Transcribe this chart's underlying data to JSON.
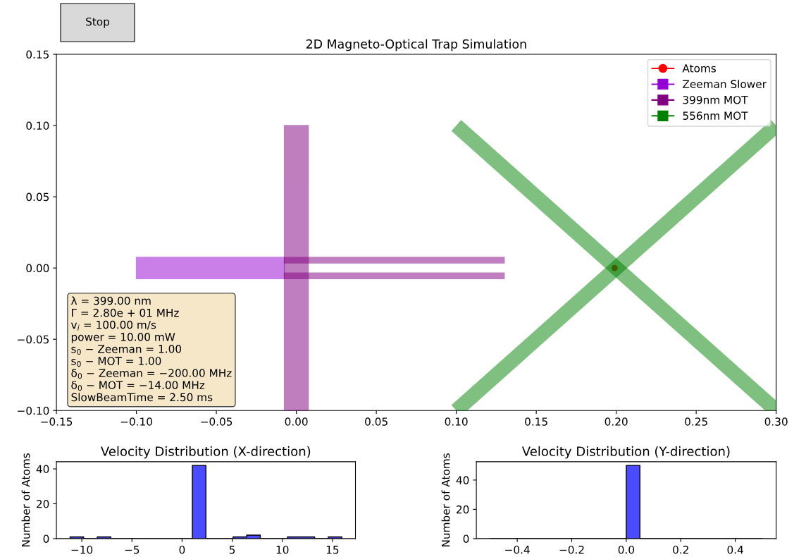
{
  "chart_data": [
    {
      "type": "line",
      "title": "2D Magneto-Optical Trap Simulation",
      "xlim": [
        -0.15,
        0.3
      ],
      "ylim": [
        -0.1,
        0.15
      ],
      "xticks": [
        {
          "value": -0.15,
          "label": "−0.15"
        },
        {
          "value": -0.1,
          "label": "−0.10"
        },
        {
          "value": -0.05,
          "label": "−0.05"
        },
        {
          "value": 0,
          "label": "0.00"
        },
        {
          "value": 0.05,
          "label": "0.05"
        },
        {
          "value": 0.1,
          "label": "0.10"
        },
        {
          "value": 0.15,
          "label": "0.15"
        },
        {
          "value": 0.2,
          "label": "0.20"
        },
        {
          "value": 0.25,
          "label": "0.25"
        },
        {
          "value": 0.3,
          "label": "0.30"
        }
      ],
      "yticks": [
        {
          "value": -0.1,
          "label": "−0.10"
        },
        {
          "value": -0.05,
          "label": "−0.05"
        },
        {
          "value": 0,
          "label": "0.00"
        },
        {
          "value": 0.05,
          "label": "0.05"
        },
        {
          "value": 0.1,
          "label": "0.10"
        },
        {
          "value": 0.15,
          "label": "0.15"
        }
      ],
      "legend": "top right",
      "grid": false,
      "series": [
        {
          "type": "scatter",
          "name": "Atoms",
          "color": "#ff0000",
          "marker": "circle",
          "x": [
            0.199
          ],
          "values": [
            0.0
          ]
        },
        {
          "type": "area",
          "name": "Zeeman Slower",
          "color": "#9400d3",
          "x": [
            -0.1,
            -0.0075,
            -0.0075,
            -0.1
          ],
          "values": [
            -0.0075,
            -0.0075,
            0.0075,
            0.0075
          ]
        },
        {
          "type": "area",
          "name": "399nm MOT",
          "color": "#800080",
          "x": [
            -0.0075,
            0.0075,
            0.0075,
            -0.0075
          ],
          "values": [
            -0.1,
            -0.1,
            0.1,
            0.1
          ]
        },
        {
          "type": "area",
          "color": "#800080",
          "x": [
            -0.0075,
            0.13,
            0.13,
            -0.0075
          ],
          "values": [
            0.0035,
            0.0035,
            0.0075,
            0.0075
          ]
        },
        {
          "type": "area",
          "color": "#800080",
          "x": [
            -0.0075,
            0.13,
            0.13,
            -0.0075
          ],
          "values": [
            -0.0075,
            -0.0075,
            -0.0035,
            -0.0035
          ]
        },
        {
          "type": "line",
          "name": "556nm MOT",
          "color": "#008000",
          "x": [
            0.1,
            0.3
          ],
          "values": [
            0.1,
            -0.1
          ]
        },
        {
          "type": "line",
          "color": "#008000",
          "x": [
            0.1,
            0.3
          ],
          "values": [
            -0.1,
            0.1
          ]
        }
      ],
      "annotations": [
        "λ = 399.00 nm\nΓ = 2.80e + 01 MHz\nv$_{i}$ = 100.00 m/s\npower = 10.00 mW\ns$_{0}$ − Zeeman = 1.00\ns$_{0}$ − MOT = 1.00\nδ$_{0}$ − Zeeman = −200.00 MHz\nδ$_{0}$ − MOT = −14.00 MHz\nSlowBeamTime = 2.50 ms",
        "Stop"
      ]
    },
    {
      "type": "histogram",
      "title": "Velocity Distribution (X-direction)",
      "ylabel": "Number of Atoms",
      "color": "#4b4bff",
      "bins": [
        -11.17,
        -9.815,
        -8.46,
        -7.105,
        -5.75,
        -4.395,
        -3.04,
        -1.685,
        -0.33,
        1.025,
        2.38,
        3.735,
        5.09,
        6.445,
        7.8,
        9.155,
        10.51,
        11.865,
        13.22,
        14.575,
        15.93
      ],
      "values": [
        1,
        0,
        1,
        0,
        0,
        0,
        0,
        0,
        0,
        42,
        0,
        0,
        1,
        2,
        0,
        0,
        1,
        1,
        0,
        1
      ],
      "xlim": [
        -12.53,
        17.29
      ],
      "ylim": [
        0,
        44.1
      ],
      "xticks": [
        {
          "value": -10,
          "label": "−10"
        },
        {
          "value": -5,
          "label": "−5"
        },
        0,
        5,
        10,
        15
      ],
      "yticks": [
        0,
        20,
        40
      ]
    },
    {
      "type": "histogram",
      "title": "Velocity Distribution (Y-direction)",
      "ylabel": "Number of Atoms",
      "color": "#4b4bff",
      "bins": [
        -0.5,
        -0.45,
        -0.4,
        -0.35,
        -0.3,
        -0.25,
        -0.2,
        -0.15,
        -0.1,
        -0.05,
        0.0,
        0.05,
        0.1,
        0.15,
        0.2,
        0.25,
        0.3,
        0.35,
        0.4,
        0.45,
        0.5
      ],
      "values": [
        0,
        0,
        0,
        0,
        0,
        0,
        0,
        0,
        0,
        0,
        50,
        0,
        0,
        0,
        0,
        0,
        0,
        0,
        0,
        0
      ],
      "xlim": [
        -0.55,
        0.55
      ],
      "ylim": [
        0,
        52.5
      ],
      "xticks": [
        {
          "value": -0.4,
          "label": "−0.4"
        },
        {
          "value": -0.2,
          "label": "−0.2"
        },
        {
          "value": 0,
          "label": "0.0"
        },
        {
          "value": 0.2,
          "label": "0.2"
        },
        {
          "value": 0.4,
          "label": "0.4"
        }
      ],
      "yticks": [
        0,
        20,
        40
      ]
    }
  ]
}
